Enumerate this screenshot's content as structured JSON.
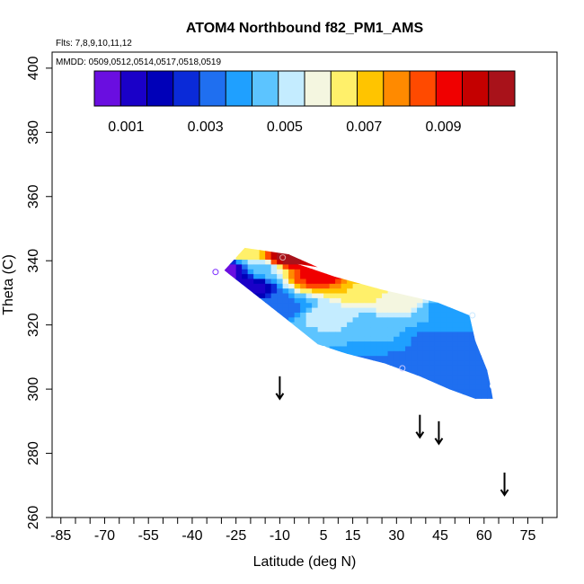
{
  "chart_data": {
    "type": "heatmap",
    "title": "ATOM4 Northbound f82_PM1_AMS",
    "subtitle_flights": "Flts: 7,8,9,10,11,12",
    "subtitle_dates": "MMDD: 0509,0512,0514,0517,0518,0519",
    "xlabel": "Latitude (deg N)",
    "ylabel": "Theta (C)",
    "xlim": [
      -88,
      85
    ],
    "ylim": [
      260,
      405
    ],
    "x_ticks": [
      -85,
      -70,
      -55,
      -40,
      -25,
      -10,
      5,
      15,
      30,
      45,
      60,
      75
    ],
    "x_minor_ticks": [
      -80,
      -75,
      -65,
      -60,
      -50,
      -45,
      -35,
      -30,
      -20,
      -15,
      -5,
      0,
      10,
      20,
      25,
      35,
      40,
      50,
      55,
      65,
      70,
      80
    ],
    "y_ticks": [
      260,
      280,
      300,
      320,
      340,
      360,
      380,
      400
    ],
    "colorbar": {
      "min": 0.0002,
      "max": 0.0108,
      "step": 0.001,
      "ticks": [
        "0.001",
        "0.003",
        "0.005",
        "0.007",
        "0.009"
      ],
      "colors": [
        "#6a0ee0",
        "#1a00c8",
        "#0000b8",
        "#0a2ad8",
        "#1f6ff0",
        "#1fa0ff",
        "#5cc4ff",
        "#c4ecff",
        "#f4f6e0",
        "#fff06a",
        "#ffc400",
        "#ff8a00",
        "#ff4a00",
        "#f00000",
        "#c40000",
        "#a8121a"
      ]
    },
    "data_region_polygon": [
      [
        -29,
        337
      ],
      [
        -22,
        344
      ],
      [
        -7,
        342
      ],
      [
        3,
        338
      ],
      [
        -4,
        339
      ],
      [
        9,
        335
      ],
      [
        25,
        331
      ],
      [
        44,
        327
      ],
      [
        55,
        323
      ],
      [
        57,
        315
      ],
      [
        61,
        306
      ],
      [
        62,
        302
      ],
      [
        63,
        297
      ],
      [
        57,
        297
      ],
      [
        48,
        300
      ],
      [
        38,
        304
      ],
      [
        26,
        308
      ],
      [
        13,
        311
      ],
      [
        3,
        314
      ],
      [
        -8,
        322
      ],
      [
        -22,
        332
      ]
    ],
    "field_anchors": [
      {
        "lat": -22,
        "theta": 343,
        "value": 0.0065
      },
      {
        "lat": -8,
        "theta": 341,
        "value": 0.0105
      },
      {
        "lat": 3,
        "theta": 336,
        "value": 0.0092
      },
      {
        "lat": 20,
        "theta": 331,
        "value": 0.0068
      },
      {
        "lat": 30,
        "theta": 328,
        "value": 0.0058
      },
      {
        "lat": 48,
        "theta": 325,
        "value": 0.004
      },
      {
        "lat": -28,
        "theta": 337,
        "value": 0.0006
      },
      {
        "lat": -22,
        "theta": 332,
        "value": 0.0012
      },
      {
        "lat": -10,
        "theta": 325,
        "value": 0.0032
      },
      {
        "lat": -16,
        "theta": 338,
        "value": 0.0047
      },
      {
        "lat": 0,
        "theta": 316,
        "value": 0.0046
      },
      {
        "lat": 6,
        "theta": 322,
        "value": 0.0052
      },
      {
        "lat": 20,
        "theta": 320,
        "value": 0.0046
      },
      {
        "lat": 15,
        "theta": 309,
        "value": 0.0035
      },
      {
        "lat": 30,
        "theta": 305,
        "value": 0.0031
      },
      {
        "lat": 45,
        "theta": 315,
        "value": 0.0034
      },
      {
        "lat": 58,
        "theta": 310,
        "value": 0.003
      },
      {
        "lat": 60,
        "theta": 300,
        "value": 0.003
      }
    ],
    "markers": [
      {
        "lat": -32,
        "theta": 336.5,
        "color": "#7a2aff"
      },
      {
        "lat": -9,
        "theta": 341,
        "color": "#e0a0a0"
      },
      {
        "lat": 56,
        "theta": 323,
        "color": "#c8e8ff"
      },
      {
        "lat": 5,
        "theta": 312.5,
        "color": "#ffffff"
      },
      {
        "lat": 32,
        "theta": 306.5,
        "color": "#c8c8ff"
      },
      {
        "lat": 63,
        "theta": 301,
        "color": "#ffffff"
      }
    ],
    "arrows": [
      {
        "lat": -10,
        "theta_top": 304,
        "theta_bottom": 297
      },
      {
        "lat": 38,
        "theta_top": 292,
        "theta_bottom": 285
      },
      {
        "lat": 44.5,
        "theta_top": 290,
        "theta_bottom": 283
      },
      {
        "lat": 67,
        "theta_top": 274,
        "theta_bottom": 267
      }
    ]
  }
}
